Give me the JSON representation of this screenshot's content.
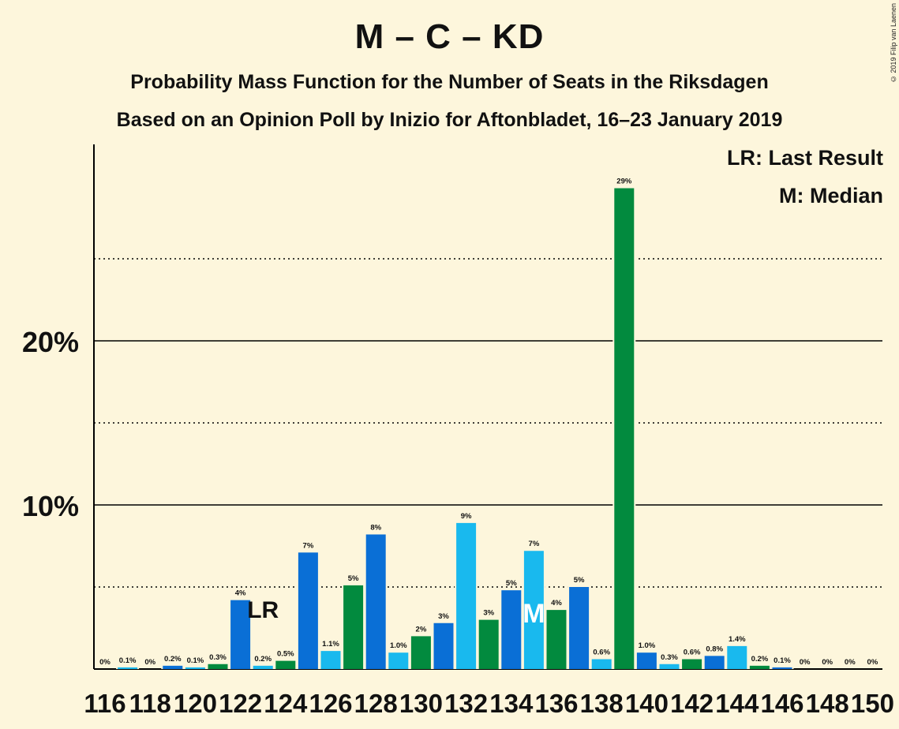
{
  "title": "M – C – KD",
  "subtitle1": "Probability Mass Function for the Number of Seats in the Riksdagen",
  "subtitle2": "Based on an Opinion Poll by Inizio for Aftonbladet, 16–23 January 2019",
  "copyright": "© 2019 Filip van Laenen",
  "legend": {
    "last_result": "LR: Last Result",
    "median": "M: Median"
  },
  "colors": {
    "background": "#fdf6dc",
    "blue": "#0a6fd6",
    "lightblue": "#19b9ee",
    "green": "#028a3e",
    "gridline": "#000000"
  },
  "chart_data": {
    "type": "bar",
    "x": [
      116,
      117,
      118,
      119,
      120,
      121,
      122,
      123,
      124,
      125,
      126,
      127,
      128,
      129,
      130,
      131,
      132,
      133,
      134,
      135,
      136,
      137,
      138,
      139,
      140,
      141,
      142,
      143,
      144,
      145,
      146,
      147,
      148,
      149,
      150
    ],
    "values": [
      0,
      0.1,
      0,
      0.2,
      0.1,
      0.3,
      4.2,
      0.2,
      0.5,
      7.1,
      1.1,
      5.1,
      8.2,
      1.0,
      2.0,
      2.8,
      8.9,
      3.0,
      4.8,
      7.2,
      3.6,
      5.0,
      0.6,
      29.3,
      1.0,
      0.3,
      0.6,
      0.8,
      1.4,
      0.2,
      0.1,
      0,
      0,
      0,
      0
    ],
    "value_labels": [
      "0%",
      "0.1%",
      "0%",
      "0.2%",
      "0.1%",
      "0.3%",
      "4%",
      "0.2%",
      "0.5%",
      "7%",
      "1.1%",
      "5%",
      "8%",
      "1.0%",
      "2%",
      "3%",
      "9%",
      "3%",
      "5%",
      "7%",
      "4%",
      "5%",
      "0.6%",
      "29%",
      "1.0%",
      "0.3%",
      "0.6%",
      "0.8%",
      "1.4%",
      "0.2%",
      "0.1%",
      "0%",
      "0%",
      "0%",
      "0%"
    ],
    "bar_colors": [
      "blue",
      "lightblue",
      "green",
      "blue",
      "lightblue",
      "green",
      "blue",
      "lightblue",
      "green",
      "blue",
      "lightblue",
      "green",
      "blue",
      "lightblue",
      "green",
      "blue",
      "lightblue",
      "green",
      "blue",
      "lightblue",
      "green",
      "blue",
      "lightblue",
      "green",
      "blue",
      "lightblue",
      "green",
      "blue",
      "lightblue",
      "green",
      "blue",
      "lightblue",
      "green",
      "blue",
      "lightblue"
    ],
    "x_tick_labels": [
      "116",
      "118",
      "120",
      "122",
      "124",
      "126",
      "128",
      "130",
      "132",
      "134",
      "136",
      "138",
      "140",
      "142",
      "144",
      "146",
      "148",
      "150"
    ],
    "y_tick_labels": [
      {
        "value": 10,
        "label": "10%"
      },
      {
        "value": 20,
        "label": "20%"
      }
    ],
    "y_solid_gridlines": [
      10,
      20
    ],
    "y_dotted_gridlines": [
      5,
      15,
      25
    ],
    "ylim": [
      0,
      32
    ],
    "last_result": {
      "seat": 123,
      "label": "LR"
    },
    "median": {
      "seat": 135,
      "label": "M"
    }
  }
}
